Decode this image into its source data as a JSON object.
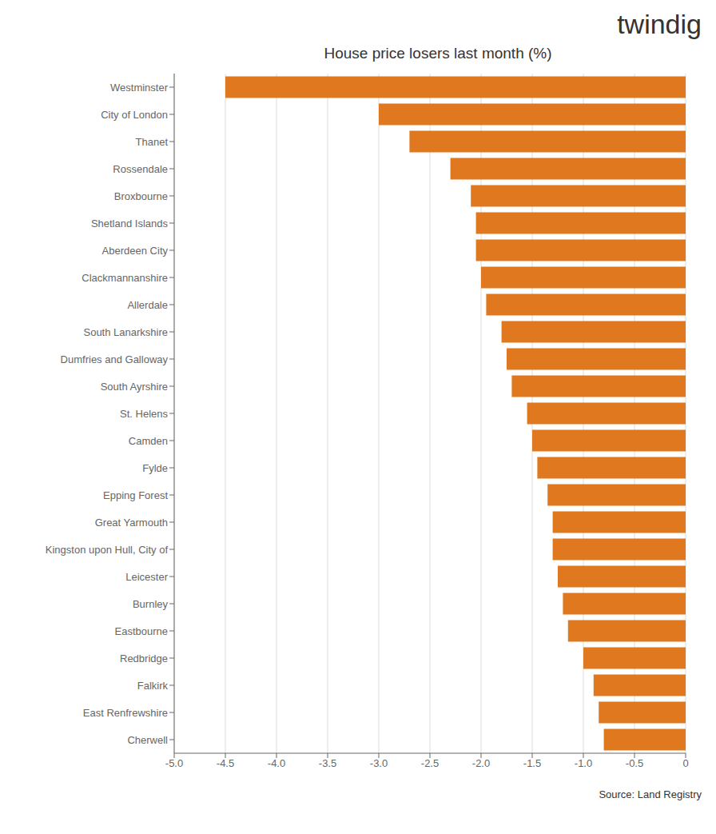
{
  "chart_data": {
    "type": "bar",
    "orientation": "horizontal",
    "title": "House price losers last month (%)",
    "annotations": [
      "twindig",
      "Source: Land Registry"
    ],
    "categories": [
      "Westminster",
      "City of London",
      "Thanet",
      "Rossendale",
      "Broxbourne",
      "Shetland Islands",
      "Aberdeen City",
      "Clackmannanshire",
      "Allerdale",
      "South Lanarkshire",
      "Dumfries and Galloway",
      "South Ayrshire",
      "St. Helens",
      "Camden",
      "Fylde",
      "Epping Forest",
      "Great Yarmouth",
      "Kingston upon Hull, City of",
      "Leicester",
      "Burnley",
      "Eastbourne",
      "Redbridge",
      "Falkirk",
      "East Renfrewshire",
      "Cherwell"
    ],
    "values": [
      -4.5,
      -3.0,
      -2.7,
      -2.3,
      -2.1,
      -2.05,
      -2.05,
      -2.0,
      -1.95,
      -1.8,
      -1.75,
      -1.7,
      -1.55,
      -1.5,
      -1.45,
      -1.35,
      -1.3,
      -1.3,
      -1.25,
      -1.2,
      -1.15,
      -1.0,
      -0.9,
      -0.85,
      -0.8
    ],
    "color": "#E07820",
    "xlim": [
      -5.0,
      0
    ],
    "xticks": [
      {
        "value": -5.0,
        "label": "-5.0"
      },
      -4.5,
      {
        "value": -4.0,
        "label": "-4.0"
      },
      -3.5,
      {
        "value": -3.0,
        "label": "-3.0"
      },
      -2.5,
      {
        "value": -2.0,
        "label": "-2.0"
      },
      -1.5,
      {
        "value": -1.0,
        "label": "-1.0"
      },
      -0.5,
      0
    ],
    "grid": true
  }
}
